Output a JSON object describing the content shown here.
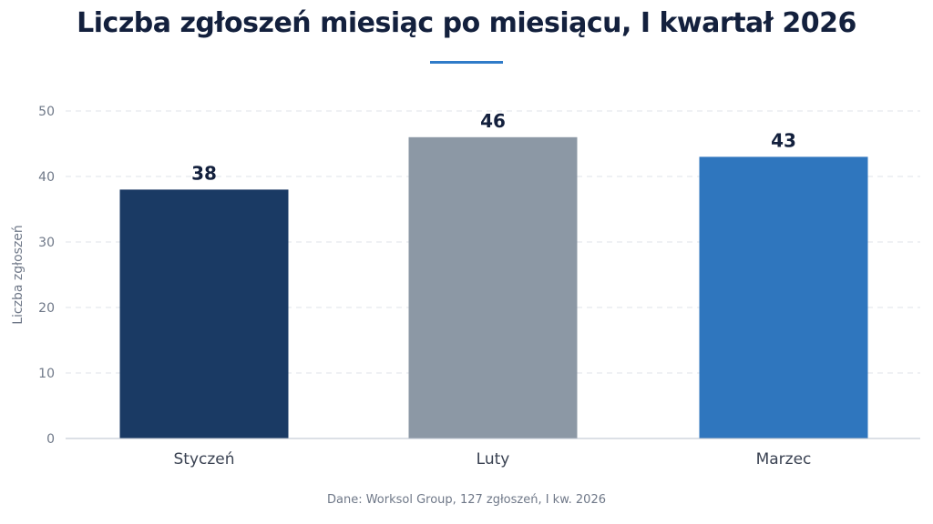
{
  "chart_data": {
    "type": "bar",
    "title": "Liczba zgłoszeń miesiąc po miesiącu, I kwartał 2026",
    "xlabel": "",
    "ylabel": "Liczba zgłoszeń",
    "categories": [
      "Styczeń",
      "Luty",
      "Marzec"
    ],
    "values": [
      38,
      46,
      43
    ],
    "bar_colors": [
      "#1a3a64",
      "#8c98a5",
      "#2f76be"
    ],
    "ylim": [
      0,
      50
    ],
    "yticks": [
      0,
      10,
      20,
      30,
      40,
      50
    ],
    "grid": true,
    "data_labels": true
  },
  "source_note": "Dane: Worksol Group, 127 zgłoszeń, I kw. 2026",
  "colors": {
    "title": "#13203d",
    "accent_rule": "#2f7bc8",
    "axis_text": "#6f7888",
    "gridline": "#dfe3ea",
    "axis_line": "#b9c0cc",
    "data_label": "#13203d"
  }
}
